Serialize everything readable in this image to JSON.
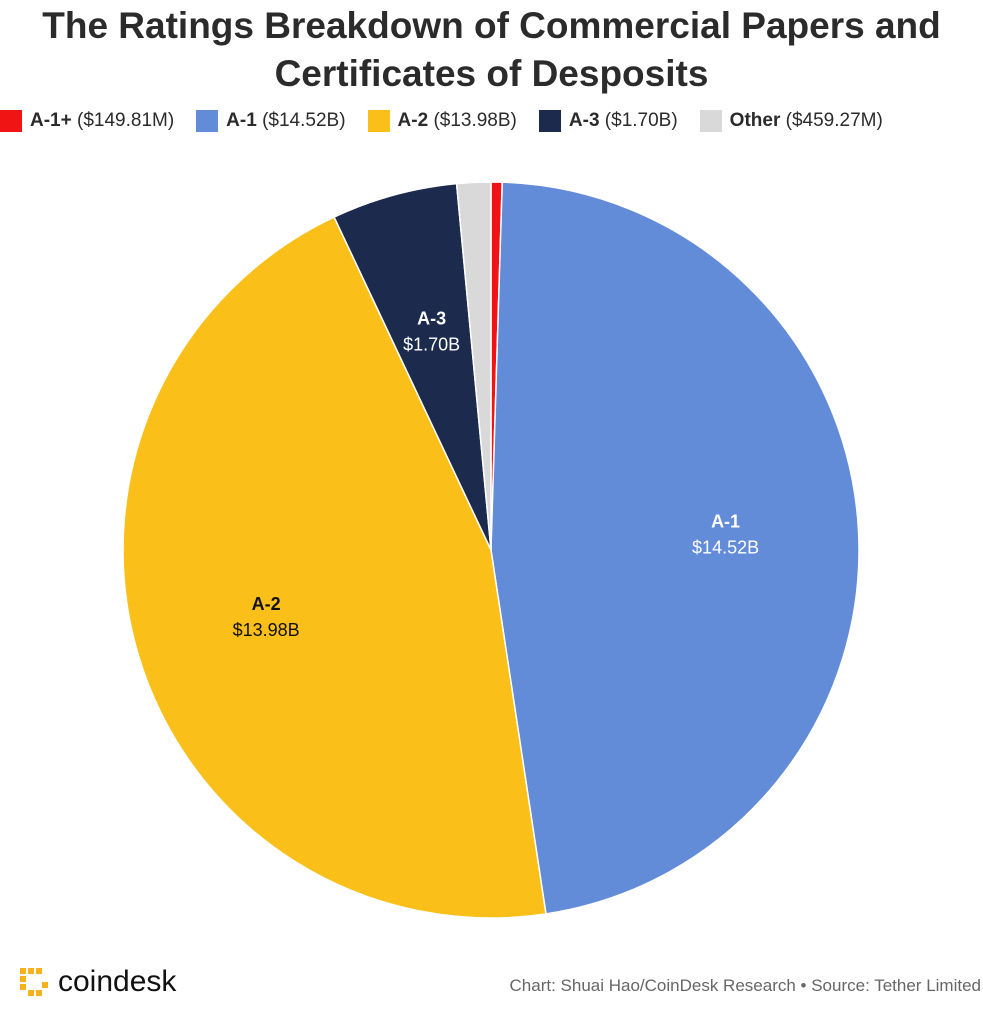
{
  "chart_data": {
    "type": "pie",
    "title": "The Ratings Breakdown of Commercial Papers and Certificates of Desposits",
    "categories": [
      "A-1+",
      "A-1",
      "A-2",
      "A-3",
      "Other"
    ],
    "values": [
      0.14981,
      14.52,
      13.98,
      1.7,
      0.45927
    ],
    "value_labels": [
      "$149.81M",
      "$14.52B",
      "$13.98B",
      "$1.70B",
      "$459.27M"
    ],
    "legend_labels": [
      "($149.81M)",
      "($14.52B)",
      "($13.98B)",
      "($1.70B)",
      "($459.27M)"
    ],
    "colors": [
      "#f01414",
      "#628bd8",
      "#fbbf1a",
      "#1b2a4d",
      "#d9d9d9"
    ],
    "label_colors": [
      "#ffffff",
      "#ffffff",
      "#111111",
      "#ffffff",
      "#111111"
    ],
    "legend_position": "top"
  },
  "footer": {
    "logo": "coindesk",
    "credit": "Chart: Shuai Hao/CoinDesk Research • Source: Tether Limited"
  }
}
